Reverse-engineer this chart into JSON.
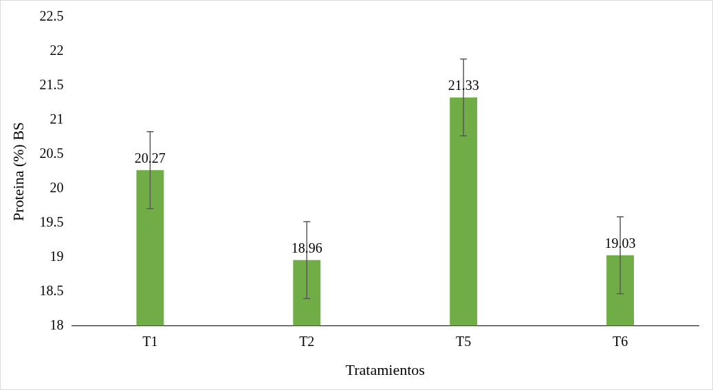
{
  "chart_data": {
    "type": "bar",
    "xlabel": "Tratamientos",
    "ylabel": "Proteina (%) BS",
    "categories": [
      "T1",
      "T2",
      "T5",
      "T6"
    ],
    "values": [
      20.27,
      18.96,
      21.33,
      19.03
    ],
    "errors": [
      0.56,
      0.56,
      0.56,
      0.56
    ],
    "color": "#70ad47",
    "ylim": [
      18,
      22.5
    ],
    "yticks": [
      18,
      {
        "value": 18.5,
        "label": "18.5"
      },
      19,
      {
        "value": 19.5,
        "label": "19.5"
      },
      20,
      {
        "value": 20.5,
        "label": "20.5"
      },
      21,
      {
        "value": 21.5,
        "label": "21.5"
      },
      22,
      {
        "value": 22.5,
        "label": "22.5"
      }
    ],
    "data_labels": true,
    "grid": false,
    "legend": false
  }
}
